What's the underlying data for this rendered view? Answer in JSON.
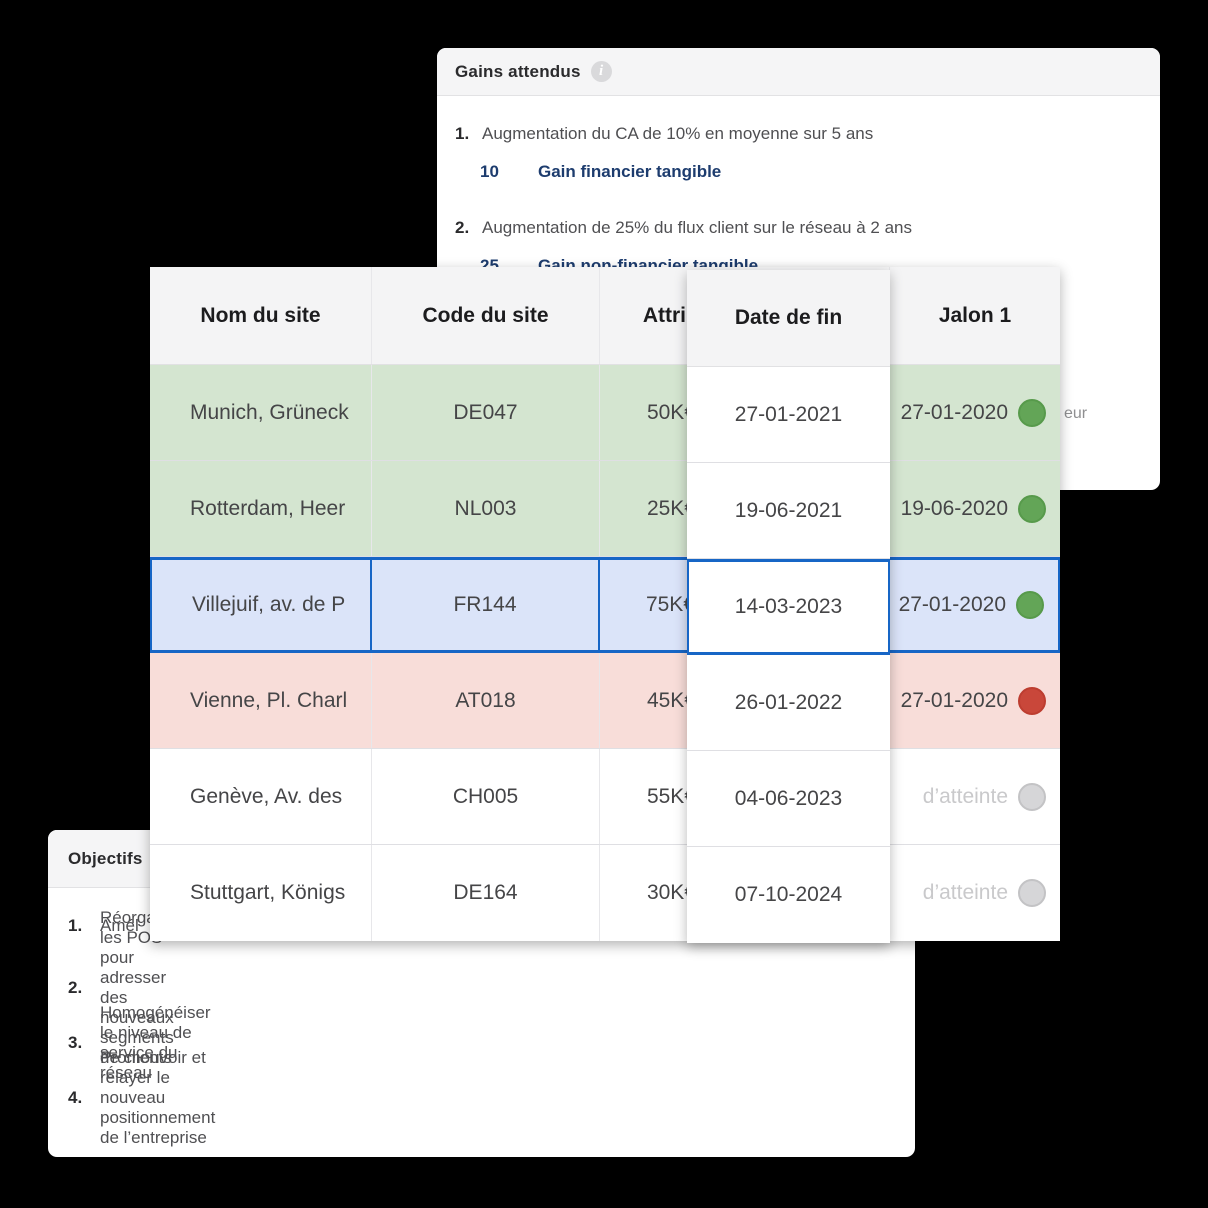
{
  "colors": {
    "background": "#000000",
    "accent_blue": "#1766c6",
    "navy_text": "#1d3c6e",
    "row_green": "#d4e5d0",
    "row_red": "#f8ddd9",
    "row_selected": "#dbe4f9",
    "dot_green": "#63a557",
    "dot_red": "#c9473a",
    "dot_gray": "#d6d6d8"
  },
  "gains_card": {
    "title": "Gains attendus",
    "info_icon": "i",
    "items": [
      {
        "num": "1.",
        "text": "Augmentation du CA de 10% en moyenne sur 5 ans",
        "value": "10",
        "label": "Gain financier tangible"
      },
      {
        "num": "2.",
        "text": "Augmentation de 25% du flux client sur le réseau à 2 ans",
        "value": "25",
        "label": "Gain non-financier tangible"
      }
    ],
    "partial_text": "eur"
  },
  "objectifs_card": {
    "title": "Objectifs",
    "items": [
      {
        "num": "1.",
        "text": "Amél"
      },
      {
        "num": "2.",
        "text": "Réorganiser les POS pour adresser des nouveaux segments de clients"
      },
      {
        "num": "3.",
        "text": "Homogénéiser le niveau de service du réseau"
      },
      {
        "num": "4.",
        "text": "Promouvoir et relayer le nouveau positionnement de l’entreprise"
      }
    ]
  },
  "table": {
    "columns": [
      "Nom du site",
      "Code du site",
      "Attri",
      "Date de fin",
      "Jalon 1"
    ],
    "rows": [
      {
        "name": "Munich, Grüneck",
        "code": "DE047",
        "attr": "50K€",
        "date_fin": "27-01-2021",
        "jalon": "27-01-2020",
        "status": "green",
        "row_color": "green"
      },
      {
        "name": "Rotterdam, Heer",
        "code": "NL003",
        "attr": "25K€",
        "date_fin": "19-06-2021",
        "jalon": "19-06-2020",
        "status": "green",
        "row_color": "green"
      },
      {
        "name": "Villejuif, av. de P",
        "code": "FR144",
        "attr": "75K€",
        "date_fin": "14-03-2023",
        "jalon": "27-01-2020",
        "status": "green",
        "row_color": "selected"
      },
      {
        "name": "Vienne, Pl. Charl",
        "code": "AT018",
        "attr": "45K€",
        "date_fin": "26-01-2022",
        "jalon": "27-01-2020",
        "status": "red",
        "row_color": "red"
      },
      {
        "name": "Genève, Av. des",
        "code": "CH005",
        "attr": "55K€",
        "date_fin": "04-06-2023",
        "jalon": "d’atteinte",
        "status": "gray",
        "row_color": "white"
      },
      {
        "name": "Stuttgart, Königs",
        "code": "DE164",
        "attr": "30K€",
        "date_fin": "07-10-2024",
        "jalon": "d’atteinte",
        "status": "gray",
        "row_color": "white"
      }
    ]
  }
}
